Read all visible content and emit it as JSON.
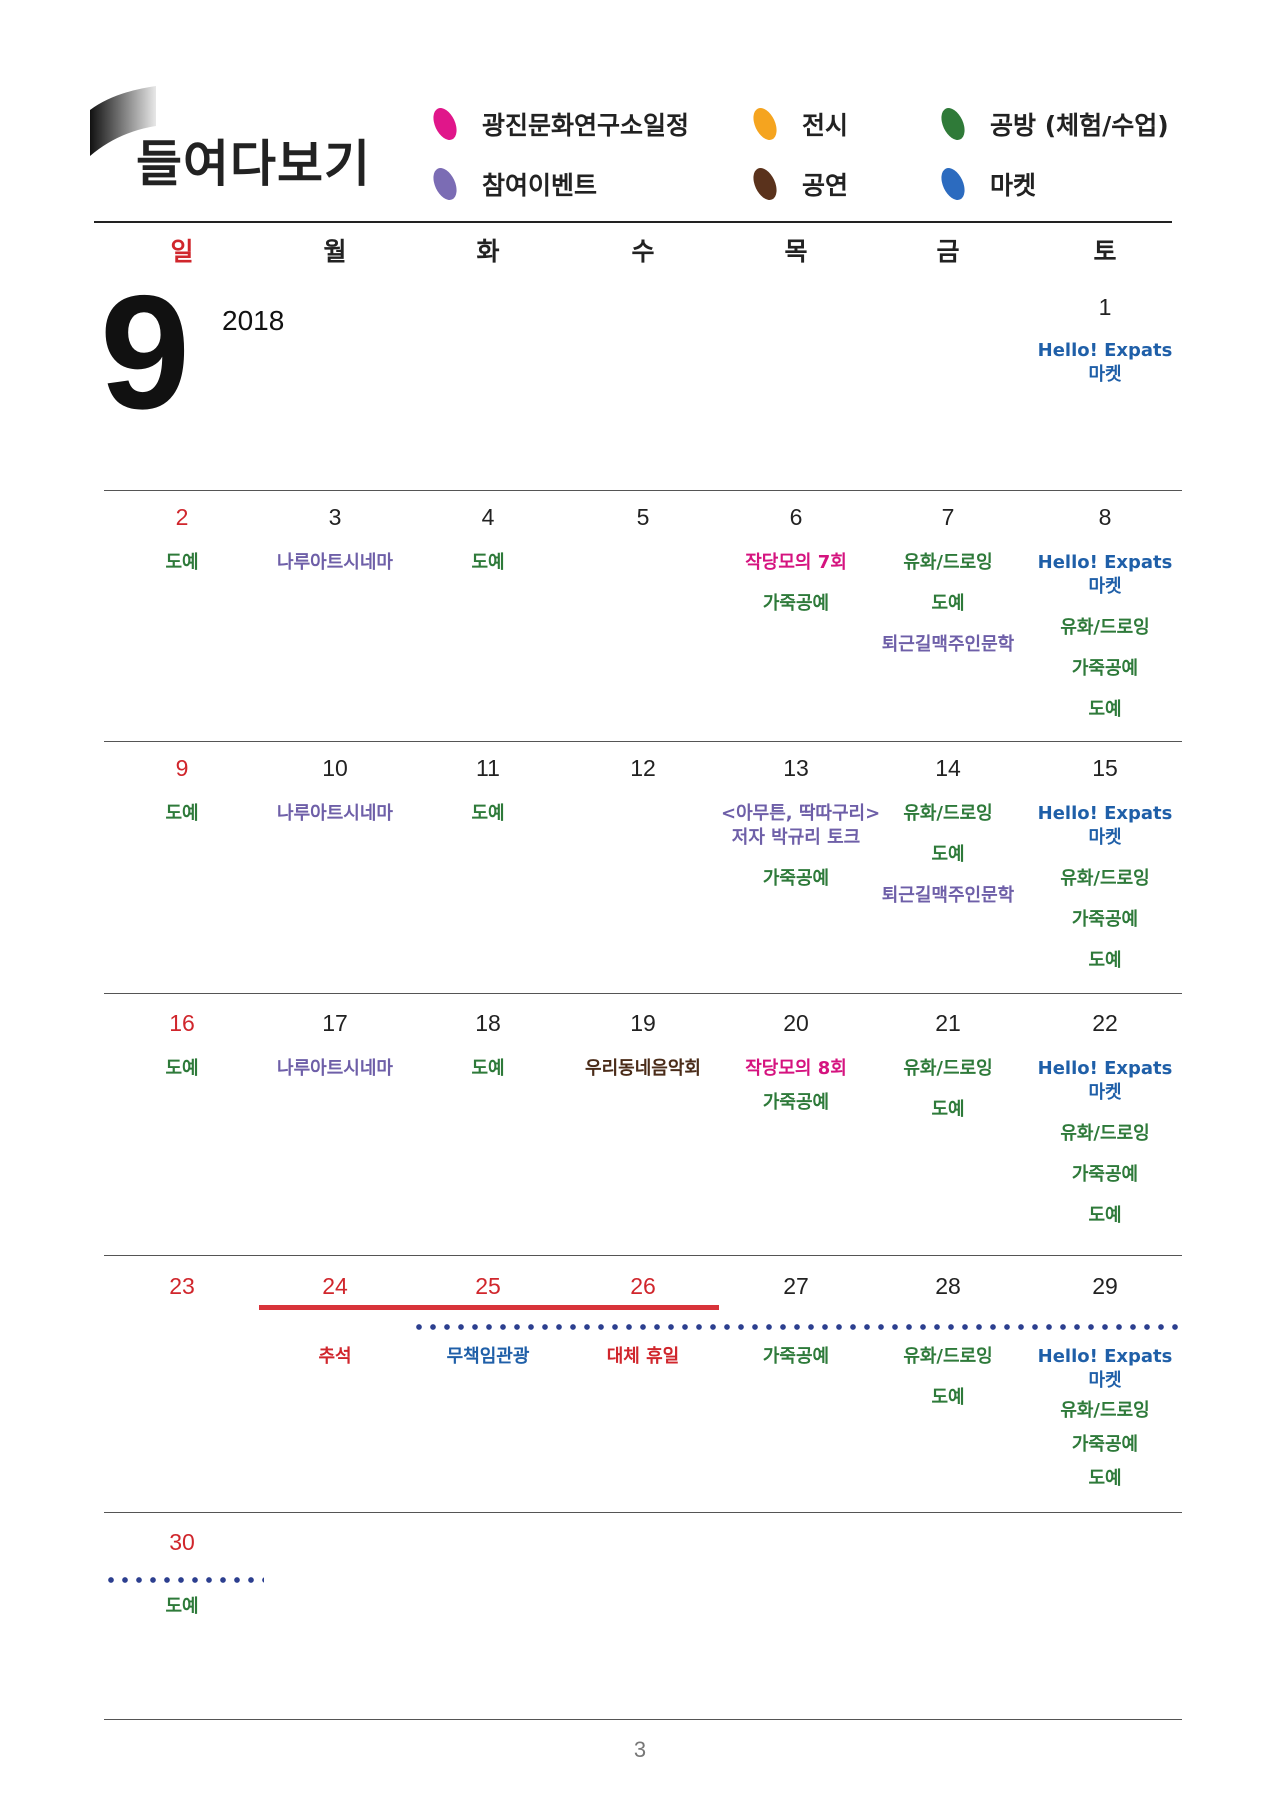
{
  "header": {
    "title": "들여다보기",
    "legend": [
      {
        "label": "광진문화연구소일정",
        "color": "#e0168a",
        "icon": "pink-leaf-icon"
      },
      {
        "label": "참여이벤트",
        "color": "#7b6cb4",
        "icon": "purple-leaf-icon"
      },
      {
        "label": "전시",
        "color": "#f5a41f",
        "icon": "orange-leaf-icon"
      },
      {
        "label": "공연",
        "color": "#5a321c",
        "icon": "brown-leaf-icon"
      },
      {
        "label": "공방 (체험/수업)",
        "color": "#2f7a38",
        "icon": "green-leaf-icon"
      },
      {
        "label": "마켓",
        "color": "#2c6bbf",
        "icon": "blue-leaf-icon"
      }
    ]
  },
  "calendar": {
    "month": "9",
    "year": "2018",
    "weekdays": [
      "일",
      "월",
      "화",
      "수",
      "목",
      "금",
      "토"
    ],
    "days": {
      "d1": "1",
      "d2": "2",
      "d3": "3",
      "d4": "4",
      "d5": "5",
      "d6": "6",
      "d7": "7",
      "d8": "8",
      "d9": "9",
      "d10": "10",
      "d11": "11",
      "d12": "12",
      "d13": "13",
      "d14": "14",
      "d15": "15",
      "d16": "16",
      "d17": "17",
      "d18": "18",
      "d19": "19",
      "d20": "20",
      "d21": "21",
      "d22": "22",
      "d23": "23",
      "d24": "24",
      "d25": "25",
      "d26": "26",
      "d27": "27",
      "d28": "28",
      "d29": "29",
      "d30": "30"
    },
    "events": {
      "market1": "Hello! Expats",
      "market2": "마켓",
      "pottery": "도예",
      "cinema": "나루아트시네마",
      "painting": "유화/드로잉",
      "leather": "가죽공예",
      "humanities": "퇴근길맥주인문학",
      "writer7": "작당모의 7회",
      "writer8": "작당모의 8회",
      "talk1": "<아무튼, 딱따구리>",
      "talk2": "저자 박규리 토크",
      "music": "우리동네음악회",
      "chuseok": "추석",
      "free_admission": "무책임관광",
      "substitute_holiday": "대체 휴일"
    }
  },
  "footer": {
    "page": "3"
  }
}
